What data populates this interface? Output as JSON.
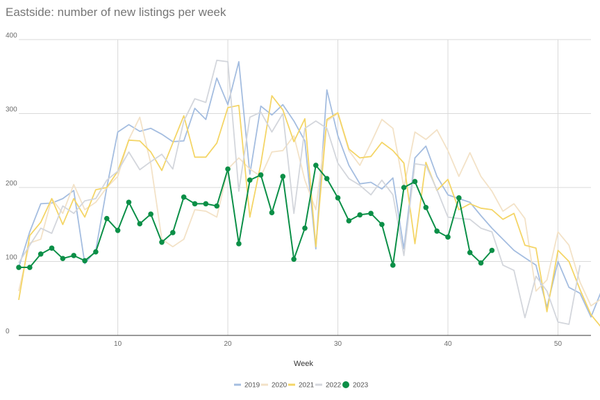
{
  "chart_data": {
    "type": "line",
    "title": "Eastside: number of new listings per week",
    "xlabel": "Week",
    "ylabel": "",
    "xlim": [
      1,
      53
    ],
    "ylim": [
      0,
      400
    ],
    "x_ticks": [
      10,
      20,
      30,
      40,
      50
    ],
    "y_ticks": [
      0,
      100,
      200,
      300,
      400
    ],
    "grid": true,
    "legend_position": "bottom",
    "series": [
      {
        "name": "2019",
        "color": "#a4bde0",
        "markers": false,
        "values": [
          92,
          140,
          178,
          179,
          185,
          196,
          97,
          115,
          200,
          275,
          285,
          276,
          280,
          272,
          262,
          263,
          307,
          292,
          348,
          312,
          370,
          218,
          310,
          298,
          312,
          290,
          263,
          117,
          332,
          270,
          230,
          205,
          207,
          198,
          213,
          117,
          240,
          256,
          215,
          190,
          185,
          180,
          162,
          145,
          130,
          115,
          105,
          95,
          38,
          100,
          65,
          57,
          25,
          62
        ]
      },
      {
        "name": "2020",
        "color": "#f3e2c7",
        "markers": false,
        "values": [
          60,
          125,
          130,
          185,
          165,
          204,
          170,
          180,
          200,
          215,
          265,
          295,
          232,
          130,
          120,
          130,
          170,
          168,
          160,
          225,
          240,
          225,
          215,
          248,
          250,
          270,
          210,
          170,
          290,
          300,
          250,
          230,
          260,
          292,
          280,
          200,
          275,
          265,
          278,
          250,
          215,
          247,
          215,
          195,
          168,
          178,
          158,
          60,
          75,
          140,
          122,
          72,
          40,
          50
        ]
      },
      {
        "name": "2021",
        "color": "#f4d566",
        "markers": false,
        "values": [
          48,
          135,
          153,
          185,
          150,
          185,
          160,
          197,
          200,
          222,
          264,
          263,
          248,
          223,
          260,
          297,
          241,
          241,
          260,
          308,
          311,
          160,
          232,
          324,
          305,
          262,
          293,
          120,
          292,
          301,
          252,
          240,
          242,
          261,
          250,
          233,
          124,
          234,
          196,
          211,
          170,
          178,
          172,
          170,
          157,
          165,
          122,
          118,
          32,
          115,
          100,
          62,
          28,
          10
        ]
      },
      {
        "name": "2022",
        "color": "#d3d6dc",
        "markers": false,
        "values": [
          98,
          122,
          145,
          138,
          175,
          165,
          182,
          185,
          210,
          222,
          248,
          224,
          235,
          245,
          225,
          290,
          320,
          315,
          372,
          370,
          195,
          295,
          302,
          275,
          300,
          165,
          280,
          290,
          280,
          233,
          212,
          203,
          190,
          210,
          190,
          108,
          232,
          230,
          197,
          160,
          158,
          157,
          145,
          140,
          95,
          88,
          24,
          80,
          60,
          18,
          15,
          95
        ]
      },
      {
        "name": "2023",
        "color": "#0b8f47",
        "markers": true,
        "values": [
          92,
          92,
          110,
          118,
          104,
          108,
          101,
          113,
          158,
          142,
          180,
          151,
          164,
          126,
          139,
          187,
          178,
          178,
          175,
          225,
          124,
          210,
          217,
          166,
          215,
          103,
          145,
          230,
          212,
          186,
          155,
          163,
          165,
          150,
          95,
          200,
          208,
          173,
          141,
          133,
          186,
          112,
          98,
          115
        ]
      }
    ]
  }
}
